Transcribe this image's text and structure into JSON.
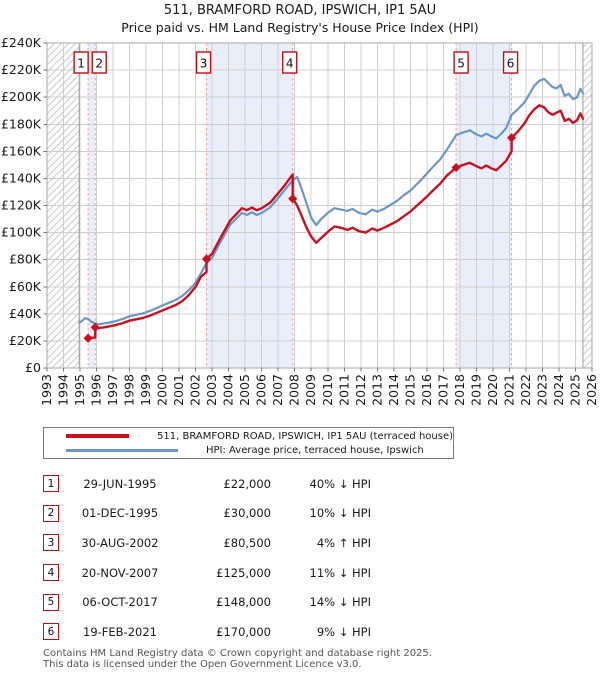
{
  "chart_data": {
    "type": "line",
    "title": "511, BRAMFORD ROAD, IPSWICH, IP1 5AU",
    "subtitle": "Price paid vs. HM Land Registry's House Price Index (HPI)",
    "grid": true,
    "legend_position": "below",
    "x_axis": {
      "min": 1993,
      "max": 2026,
      "tick_labels": [
        "1993",
        "1994",
        "1995",
        "1996",
        "1997",
        "1998",
        "1999",
        "2000",
        "2001",
        "2002",
        "2003",
        "2004",
        "2005",
        "2006",
        "2007",
        "2008",
        "2009",
        "2010",
        "2011",
        "2012",
        "2013",
        "2014",
        "2015",
        "2016",
        "2017",
        "2018",
        "2019",
        "2020",
        "2021",
        "2022",
        "2023",
        "2024",
        "2025",
        "2026"
      ]
    },
    "y_axis": {
      "min": 0,
      "max": 240000,
      "step": 20000,
      "unit": "GBP",
      "tick_labels": [
        "£0",
        "£20K",
        "£40K",
        "£60K",
        "£80K",
        "£100K",
        "£120K",
        "£140K",
        "£160K",
        "£180K",
        "£200K",
        "£220K",
        "£240K"
      ]
    },
    "series": [
      {
        "name": "HPI: Average price, terraced house, Ipswich",
        "color": "#6b96c8",
        "unit": "GBP_thousands",
        "points": [
          [
            1994.95,
            33.5
          ],
          [
            1995.1,
            34.5
          ],
          [
            1995.3,
            36.8
          ],
          [
            1995.49,
            36.2
          ],
          [
            1995.7,
            34
          ],
          [
            1995.92,
            33
          ],
          [
            1996.1,
            32.3
          ],
          [
            1996.4,
            32.8
          ],
          [
            1996.8,
            33.6
          ],
          [
            1997.2,
            34.8
          ],
          [
            1997.6,
            36.3
          ],
          [
            1998,
            38.2
          ],
          [
            1998.4,
            39.3
          ],
          [
            1998.8,
            40.3
          ],
          [
            1999.2,
            42
          ],
          [
            1999.6,
            44
          ],
          [
            2000,
            46.2
          ],
          [
            2000.4,
            48.2
          ],
          [
            2000.8,
            50.3
          ],
          [
            2001.2,
            53.3
          ],
          [
            2001.6,
            57.5
          ],
          [
            2002,
            63
          ],
          [
            2002.3,
            69.5
          ],
          [
            2002.66,
            77.5
          ],
          [
            2003,
            81.5
          ],
          [
            2003.5,
            93
          ],
          [
            2004.1,
            106
          ],
          [
            2004.8,
            114.5
          ],
          [
            2005.1,
            113
          ],
          [
            2005.4,
            115
          ],
          [
            2005.7,
            113
          ],
          [
            2006,
            114.5
          ],
          [
            2006.5,
            118.5
          ],
          [
            2007,
            125.5
          ],
          [
            2007.4,
            131.5
          ],
          [
            2007.9,
            139
          ],
          [
            2008.15,
            141
          ],
          [
            2008.4,
            133
          ],
          [
            2008.7,
            122
          ],
          [
            2009,
            111
          ],
          [
            2009.3,
            105.5
          ],
          [
            2009.6,
            110
          ],
          [
            2010,
            114.5
          ],
          [
            2010.4,
            118
          ],
          [
            2010.8,
            117
          ],
          [
            2011.2,
            116
          ],
          [
            2011.5,
            117.5
          ],
          [
            2011.9,
            114.5
          ],
          [
            2012.3,
            113.5
          ],
          [
            2012.7,
            117
          ],
          [
            2013,
            115.5
          ],
          [
            2013.4,
            117.5
          ],
          [
            2013.8,
            120.5
          ],
          [
            2014.2,
            123.5
          ],
          [
            2014.6,
            127.5
          ],
          [
            2015,
            131
          ],
          [
            2015.5,
            137
          ],
          [
            2016,
            143.5
          ],
          [
            2016.4,
            149
          ],
          [
            2016.8,
            154
          ],
          [
            2017.2,
            161
          ],
          [
            2017.77,
            172
          ],
          [
            2018.2,
            174
          ],
          [
            2018.6,
            175.5
          ],
          [
            2019,
            172.5
          ],
          [
            2019.3,
            171
          ],
          [
            2019.6,
            173
          ],
          [
            2019.9,
            171
          ],
          [
            2020.2,
            169.5
          ],
          [
            2020.5,
            173
          ],
          [
            2020.8,
            177
          ],
          [
            2021.13,
            187
          ],
          [
            2021.5,
            191
          ],
          [
            2021.9,
            196
          ],
          [
            2022.2,
            202
          ],
          [
            2022.5,
            208.5
          ],
          [
            2022.8,
            212
          ],
          [
            2023.1,
            213.5
          ],
          [
            2023.35,
            210.5
          ],
          [
            2023.6,
            207.5
          ],
          [
            2023.85,
            206.5
          ],
          [
            2024.1,
            209
          ],
          [
            2024.35,
            201
          ],
          [
            2024.6,
            202.5
          ],
          [
            2024.85,
            198.5
          ],
          [
            2025.1,
            200
          ],
          [
            2025.3,
            206
          ],
          [
            2025.45,
            203
          ]
        ]
      },
      {
        "name": "511, BRAMFORD ROAD, IPSWICH, IP1 5AU (terraced house)",
        "color": "#cc0f1e",
        "unit": "GBP_thousands",
        "points": [
          [
            1995.49,
            22
          ],
          [
            1995.6,
            22.6
          ],
          [
            1995.75,
            22.3
          ],
          [
            1995.92,
            22.6
          ],
          [
            1995.92,
            30
          ],
          [
            1996.1,
            29.5
          ],
          [
            1996.4,
            30
          ],
          [
            1996.8,
            30.8
          ],
          [
            1997.2,
            31.8
          ],
          [
            1997.6,
            33.2
          ],
          [
            1998,
            35
          ],
          [
            1998.4,
            36
          ],
          [
            1998.8,
            37
          ],
          [
            1999.2,
            38.5
          ],
          [
            1999.6,
            40.5
          ],
          [
            2000,
            42.5
          ],
          [
            2000.4,
            44.5
          ],
          [
            2000.8,
            46.5
          ],
          [
            2001.2,
            49.5
          ],
          [
            2001.6,
            54
          ],
          [
            2002,
            60
          ],
          [
            2002.3,
            67
          ],
          [
            2002.66,
            71
          ],
          [
            2002.66,
            80.5
          ],
          [
            2003,
            84.5
          ],
          [
            2003.5,
            96
          ],
          [
            2004.1,
            109
          ],
          [
            2004.8,
            118
          ],
          [
            2005.1,
            116.5
          ],
          [
            2005.4,
            118.5
          ],
          [
            2005.7,
            116.5
          ],
          [
            2006,
            118
          ],
          [
            2006.5,
            122
          ],
          [
            2007,
            129
          ],
          [
            2007.4,
            135
          ],
          [
            2007.88,
            143
          ],
          [
            2007.88,
            125
          ],
          [
            2008.1,
            121
          ],
          [
            2008.4,
            113
          ],
          [
            2008.7,
            104
          ],
          [
            2009,
            97
          ],
          [
            2009.3,
            92.5
          ],
          [
            2009.6,
            96
          ],
          [
            2010,
            100.5
          ],
          [
            2010.4,
            104.5
          ],
          [
            2010.8,
            103.5
          ],
          [
            2011.2,
            102
          ],
          [
            2011.5,
            103.5
          ],
          [
            2011.9,
            101
          ],
          [
            2012.3,
            100
          ],
          [
            2012.7,
            103
          ],
          [
            2013,
            101.5
          ],
          [
            2013.4,
            103.5
          ],
          [
            2013.8,
            106
          ],
          [
            2014.2,
            108.5
          ],
          [
            2014.6,
            112
          ],
          [
            2015,
            115.5
          ],
          [
            2015.5,
            121
          ],
          [
            2016,
            126.5
          ],
          [
            2016.4,
            131.5
          ],
          [
            2016.8,
            136
          ],
          [
            2017.2,
            142
          ],
          [
            2017.77,
            148
          ],
          [
            2018.2,
            150
          ],
          [
            2018.6,
            151.5
          ],
          [
            2019,
            149
          ],
          [
            2019.3,
            147.5
          ],
          [
            2019.6,
            149.5
          ],
          [
            2019.9,
            147.5
          ],
          [
            2020.2,
            146
          ],
          [
            2020.5,
            149.5
          ],
          [
            2020.8,
            153
          ],
          [
            2021.13,
            160
          ],
          [
            2021.13,
            170
          ],
          [
            2021.5,
            174.5
          ],
          [
            2021.9,
            180.5
          ],
          [
            2022.2,
            186.5
          ],
          [
            2022.5,
            191
          ],
          [
            2022.8,
            194
          ],
          [
            2023.1,
            192.5
          ],
          [
            2023.35,
            189
          ],
          [
            2023.6,
            187
          ],
          [
            2023.85,
            188.5
          ],
          [
            2024.1,
            190
          ],
          [
            2024.35,
            182.5
          ],
          [
            2024.6,
            184
          ],
          [
            2024.85,
            181
          ],
          [
            2025.1,
            183
          ],
          [
            2025.3,
            188
          ],
          [
            2025.45,
            184
          ]
        ]
      }
    ],
    "sales": [
      {
        "n": "1",
        "date": "29-JUN-1995",
        "price": "£22,000",
        "price_gbp": 22000,
        "year": 1995.49,
        "vs_hpi": "40% ↓ HPI"
      },
      {
        "n": "2",
        "date": "01-DEC-1995",
        "price": "£30,000",
        "price_gbp": 30000,
        "year": 1995.92,
        "vs_hpi": "10% ↓ HPI"
      },
      {
        "n": "3",
        "date": "30-AUG-2002",
        "price": "£80,500",
        "price_gbp": 80500,
        "year": 2002.66,
        "vs_hpi": "4% ↑ HPI"
      },
      {
        "n": "4",
        "date": "20-NOV-2007",
        "price": "£125,000",
        "price_gbp": 125000,
        "year": 2007.88,
        "vs_hpi": "11% ↓ HPI"
      },
      {
        "n": "5",
        "date": "06-OCT-2017",
        "price": "£148,000",
        "price_gbp": 148000,
        "year": 2017.77,
        "vs_hpi": "14% ↓ HPI"
      },
      {
        "n": "6",
        "date": "19-FEB-2021",
        "price": "£170,000",
        "price_gbp": 170000,
        "year": 2021.13,
        "vs_hpi": "9% ↓ HPI"
      }
    ],
    "ownership_bands": [
      [
        1995.49,
        1995.92
      ],
      [
        2002.66,
        2007.88
      ],
      [
        2017.77,
        2021.13
      ]
    ],
    "no_data_regions": [
      [
        1993,
        1994.95
      ],
      [
        2025.45,
        2026
      ]
    ],
    "colors": {
      "property_line": "#cc0f1e",
      "hpi_line": "#6b96c8",
      "sale_marker": "#cc0f1e",
      "sale_dashed_line": "#fa9a9a",
      "ownership_band": "#e9effa",
      "grid": "#cfcfcf",
      "hatch": "#c9c9c9",
      "plot_border": "#a9a9a9",
      "number_box_border": "#bb1111"
    }
  },
  "footer": {
    "line1": "Contains HM Land Registry data © Crown copyright and database right 2025.",
    "line2": "This data is licensed under the Open Government Licence v3.0."
  }
}
